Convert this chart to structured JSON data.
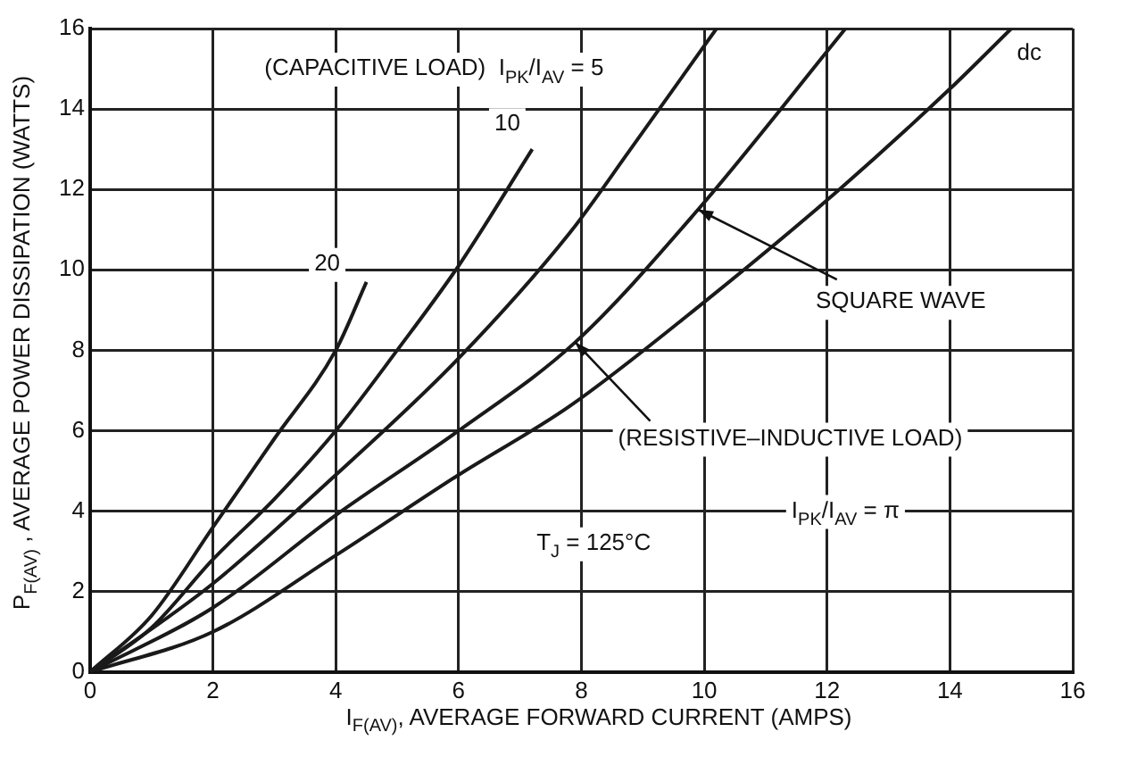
{
  "chart_data": {
    "type": "line",
    "xlabel": "I$_{F(AV)}$, AVERAGE FORWARD CURRENT (AMPS)",
    "ylabel": "P$_{F(AV)}$ , AVERAGE POWER DISSIPATION (WATTS)",
    "xlim": [
      0,
      16
    ],
    "xticks": [
      0,
      2,
      4,
      6,
      8,
      10,
      12,
      14,
      16
    ],
    "ylim": [
      0,
      16
    ],
    "yticks": [
      0,
      2,
      4,
      6,
      8,
      10,
      12,
      14,
      16
    ],
    "grid": true,
    "legend": false,
    "marker": "none",
    "line_style": "solid",
    "series": [
      {
        "name": "20",
        "color": "#1a1a1a",
        "x": [
          0,
          1,
          2,
          3,
          4,
          4.5
        ],
        "values": [
          0,
          1.4,
          3.6,
          5.8,
          8.0,
          9.7
        ]
      },
      {
        "name": "10",
        "color": "#1a1a1a",
        "x": [
          0,
          1,
          2,
          3,
          4,
          5,
          6,
          7.2
        ],
        "values": [
          0,
          1.1,
          2.8,
          4.3,
          6.0,
          8.0,
          10.1,
          13.0
        ]
      },
      {
        "color": "#1a1a1a",
        "x": [
          0,
          2,
          4,
          6,
          7.8,
          8.8,
          10.2
        ],
        "values": [
          0,
          2.2,
          4.9,
          7.8,
          10.9,
          13.0,
          16
        ]
      },
      {
        "color": "#1a1a1a",
        "x": [
          0,
          2,
          4,
          6,
          7.9,
          9.9,
          12.3
        ],
        "values": [
          0,
          1.6,
          3.9,
          6.0,
          8.2,
          11.5,
          16
        ]
      },
      {
        "name": "dc",
        "color": "#1a1a1a",
        "x": [
          0,
          2,
          4,
          6,
          7.8,
          10,
          12.2,
          14,
          15
        ],
        "values": [
          0,
          1.0,
          2.9,
          4.9,
          6.6,
          9.2,
          12.0,
          14.5,
          16
        ]
      }
    ],
    "annotations": [
      "(CAPACITIVE LOAD)  I$_{PK}$/I$_{AV}$ = 5",
      {
        "text": "SQUARE WAVE",
        "x": 9.9,
        "y": 11.5
      },
      {
        "text": "(RESISTIVE–INDUCTIVE LOAD)",
        "x": 7.9,
        "y": 8.2
      },
      "I$_{PK}$/I$_{AV}$ = π",
      "T$_{J}$ = 125°C"
    ]
  }
}
